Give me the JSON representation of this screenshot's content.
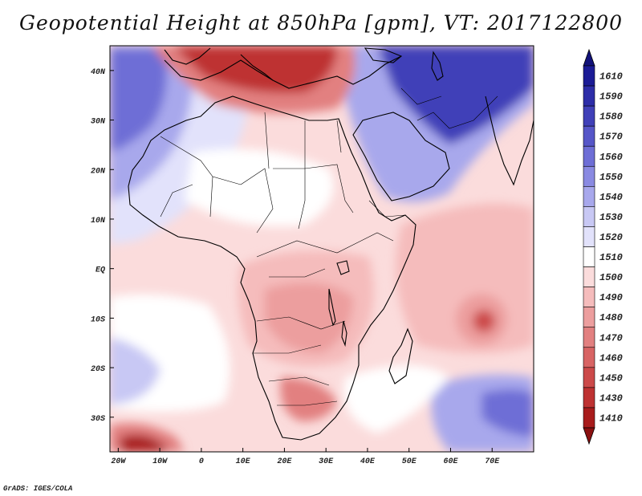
{
  "title": "Geopotential Height at 850hPa [gpm], VT: 2017122800",
  "credit": "GrADS: IGES/COLA",
  "map": {
    "lon_range": [
      -22,
      80
    ],
    "lat_range": [
      -37,
      45
    ],
    "y_ticks": [
      {
        "label": "40N",
        "lat": 40
      },
      {
        "label": "30N",
        "lat": 30
      },
      {
        "label": "20N",
        "lat": 20
      },
      {
        "label": "10N",
        "lat": 10
      },
      {
        "label": "EQ",
        "lat": 0
      },
      {
        "label": "10S",
        "lat": -10
      },
      {
        "label": "20S",
        "lat": -20
      },
      {
        "label": "30S",
        "lat": -30
      }
    ],
    "x_ticks": [
      {
        "label": "20W",
        "lon": -20
      },
      {
        "label": "10W",
        "lon": -10
      },
      {
        "label": "0",
        "lon": 0
      },
      {
        "label": "10E",
        "lon": 10
      },
      {
        "label": "20E",
        "lon": 20
      },
      {
        "label": "30E",
        "lon": 30
      },
      {
        "label": "40E",
        "lon": 40
      },
      {
        "label": "50E",
        "lon": 50
      },
      {
        "label": "60E",
        "lon": 60
      },
      {
        "label": "70E",
        "lon": 70
      }
    ]
  },
  "colorbar": {
    "levels": [
      {
        "label": "1610",
        "color": "#1c1c96"
      },
      {
        "label": "1590",
        "color": "#2d2da8"
      },
      {
        "label": "1580",
        "color": "#4040b8"
      },
      {
        "label": "1570",
        "color": "#5656c8"
      },
      {
        "label": "1560",
        "color": "#6e6ed6"
      },
      {
        "label": "1550",
        "color": "#8a8ae2"
      },
      {
        "label": "1540",
        "color": "#a8a8ec"
      },
      {
        "label": "1530",
        "color": "#c8c8f4"
      },
      {
        "label": "1520",
        "color": "#e2e2fb"
      },
      {
        "label": "1510",
        "color": "#ffffff"
      },
      {
        "label": "1500",
        "color": "#fbdcdc"
      },
      {
        "label": "1490",
        "color": "#f5bcbc"
      },
      {
        "label": "1480",
        "color": "#ec9e9e"
      },
      {
        "label": "1470",
        "color": "#e28080"
      },
      {
        "label": "1460",
        "color": "#d86464"
      },
      {
        "label": "1450",
        "color": "#cc4a4a"
      },
      {
        "label": "1430",
        "color": "#be3232"
      },
      {
        "label": "1410",
        "color": "#a81c1c"
      }
    ],
    "top_color": "#12127a",
    "bottom_color": "#8a1010"
  },
  "features": {
    "blue_sahara_west": {
      "color": "#6e6ed6"
    },
    "blue_mideast": {
      "color": "#4040b8"
    },
    "red_mediterranean": {
      "color": "#be3232"
    },
    "red_low_madagascar": {
      "color": "#cc4a4a"
    },
    "red_south_africa": {
      "color": "#e28080"
    },
    "red_southwest_corner": {
      "color": "#a81c1c"
    }
  }
}
